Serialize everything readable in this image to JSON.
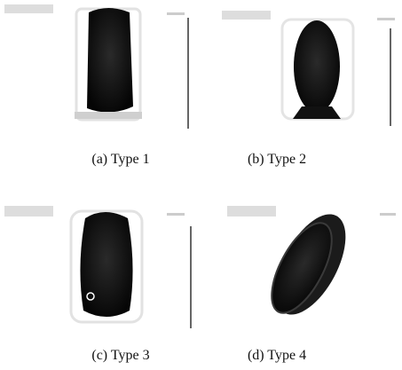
{
  "figure": {
    "panels": [
      {
        "caption": "(a) Type 1"
      },
      {
        "caption": "(b) Type 2"
      },
      {
        "caption": "(c) Type 3"
      },
      {
        "caption": "(d) Type 4"
      }
    ]
  }
}
